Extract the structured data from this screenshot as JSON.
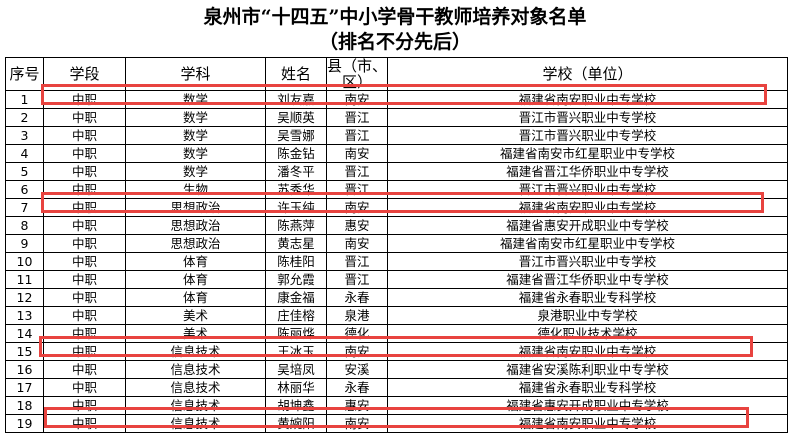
{
  "title": "泉州市“十四五”中小学骨干教师培养对象名单",
  "subtitle": "（排名不分先后）",
  "columns": [
    "序号",
    "学段",
    "学科",
    "姓名",
    "县（市、区）",
    "学校（单位）"
  ],
  "rows": [
    [
      "1",
      "中职",
      "数学",
      "刘友嘉",
      "南安",
      "福建省南安职业中专学校"
    ],
    [
      "2",
      "中职",
      "数学",
      "吴顺英",
      "晋江",
      "晋江市晋兴职业中专学校"
    ],
    [
      "3",
      "中职",
      "数学",
      "吴雪娜",
      "晋江",
      "晋江市晋兴职业中专学校"
    ],
    [
      "4",
      "中职",
      "数学",
      "陈金钻",
      "南安",
      "福建省南安市红星职业中专学校"
    ],
    [
      "5",
      "中职",
      "数学",
      "潘冬平",
      "晋江",
      "福建省晋江华侨职业中专学校"
    ],
    [
      "6",
      "中职",
      "生物",
      "苏秀华",
      "晋江",
      "晋江市晋兴职业中专学校"
    ],
    [
      "7",
      "中职",
      "思想政治",
      "许玉纯",
      "南安",
      "福建省南安职业中专学校"
    ],
    [
      "8",
      "中职",
      "思想政治",
      "陈燕萍",
      "惠安",
      "福建省惠安开成职业中专学校"
    ],
    [
      "9",
      "中职",
      "思想政治",
      "黄志星",
      "南安",
      "福建省南安市红星职业中专学校"
    ],
    [
      "10",
      "中职",
      "体育",
      "陈桂阳",
      "晋江",
      "晋江市晋兴职业中专学校"
    ],
    [
      "11",
      "中职",
      "体育",
      "郭允霞",
      "晋江",
      "福建省晋江华侨职业中专学校"
    ],
    [
      "12",
      "中职",
      "体育",
      "康金福",
      "永春",
      "福建省永春职业专科学校"
    ],
    [
      "13",
      "中职",
      "美术",
      "庄佳榕",
      "泉港",
      "泉港职业中专学校"
    ],
    [
      "14",
      "中职",
      "美术",
      "陈丽烨",
      "德化",
      "德化职业技术学校"
    ],
    [
      "15",
      "中职",
      "信息技术",
      "王冰玉",
      "南安",
      "福建省南安职业中专学校"
    ],
    [
      "16",
      "中职",
      "信息技术",
      "吴培凤",
      "安溪",
      "福建省安溪陈利职业中专学校"
    ],
    [
      "17",
      "中职",
      "信息技术",
      "林丽华",
      "永春",
      "福建省永春职业专科学校"
    ],
    [
      "18",
      "中职",
      "信息技术",
      "胡坤鑫",
      "惠安",
      "福建省惠安开成职业中专学校"
    ],
    [
      "19",
      "中职",
      "信息技术",
      "黄婉阳",
      "南安",
      "福建省南安职业中专学校"
    ]
  ],
  "highlighted_rows": [
    "1",
    "7",
    "15",
    "19"
  ],
  "highlight_color": "#e8433f"
}
